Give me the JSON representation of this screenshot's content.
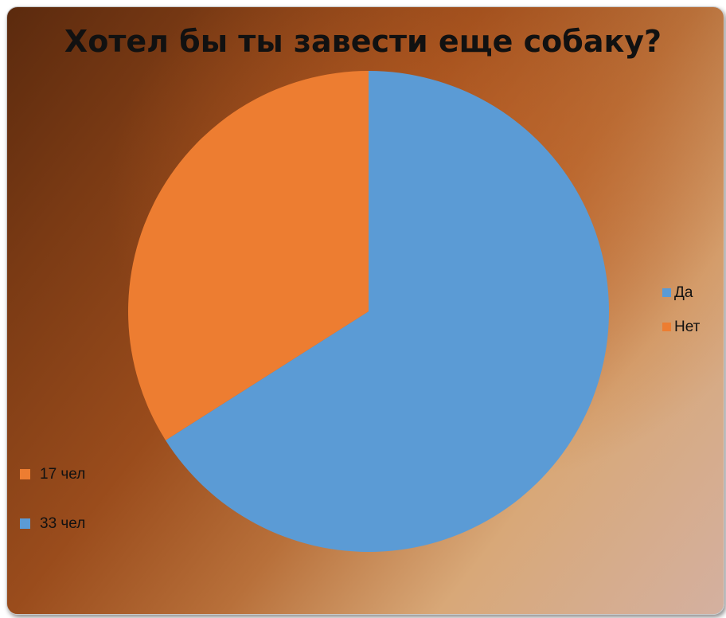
{
  "chart_data": {
    "type": "pie",
    "title": "Хотел бы ты завести еще собаку?",
    "categories": [
      "Да",
      "Нет"
    ],
    "values": [
      33,
      17
    ],
    "colors": [
      "#5b9bd5",
      "#ed7d31"
    ],
    "start_angle_deg": 0,
    "direction": "clockwise",
    "legend_position": "right",
    "data_labels": [
      {
        "text": "17 чел",
        "color": "#ed7d31"
      },
      {
        "text": "33 чел",
        "color": "#5b9bd5"
      }
    ],
    "data_labels_position": "bottom-left"
  }
}
